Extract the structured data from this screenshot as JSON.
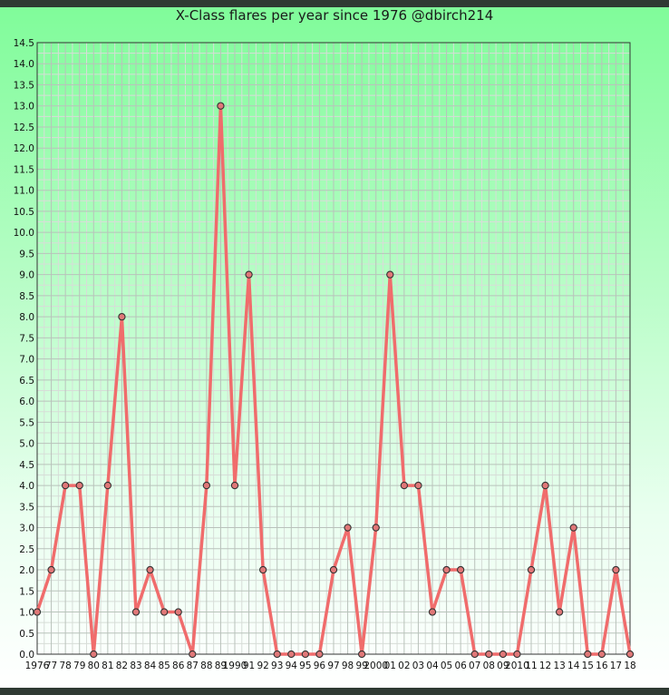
{
  "chart_data": {
    "type": "line",
    "title": "X-Class flares per year since 1976 @dbirch214",
    "xlabel": "",
    "ylabel": "",
    "ylim": [
      0,
      14.5
    ],
    "ytick_step": 0.5,
    "grid": true,
    "x": [
      "1976",
      "77",
      "78",
      "79",
      "80",
      "81",
      "82",
      "83",
      "84",
      "85",
      "86",
      "87",
      "88",
      "89",
      "1990",
      "91",
      "92",
      "93",
      "94",
      "95",
      "96",
      "97",
      "98",
      "99",
      "2000",
      "01",
      "02",
      "03",
      "04",
      "05",
      "06",
      "07",
      "08",
      "09",
      "2010",
      "11",
      "12",
      "13",
      "14",
      "15",
      "16",
      "17",
      "18"
    ],
    "values": [
      1,
      2,
      4,
      4,
      0,
      4,
      8,
      1,
      2,
      1,
      1,
      0,
      4,
      13,
      4,
      9,
      2,
      0,
      0,
      0,
      0,
      2,
      3,
      0,
      3,
      9,
      4,
      4,
      1,
      2,
      2,
      0,
      0,
      0,
      0,
      2,
      4,
      1,
      3,
      0,
      0,
      2,
      0
    ],
    "line_color": "#f06c6c",
    "marker_fill": "#e07878",
    "marker_stroke": "#333333"
  }
}
